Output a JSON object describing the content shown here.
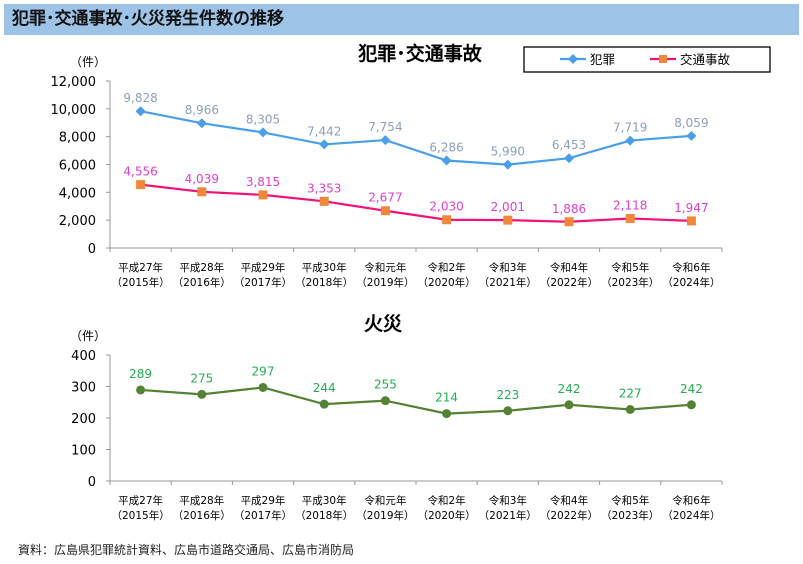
{
  "header": {
    "title": "犯罪･交通事故･火災発生件数の推移"
  },
  "source": "資料：広島県犯罪統計資料、広島市道路交通局、広島市消防局",
  "chart_data": [
    {
      "type": "line",
      "title": "犯罪･交通事故",
      "ylabel": "（件）",
      "ylim": [
        0,
        12000
      ],
      "yticks": [
        0,
        2000,
        4000,
        6000,
        8000,
        10000,
        12000
      ],
      "yticklabels": [
        "0",
        "2,000",
        "4,000",
        "6,000",
        "8,000",
        "10,000",
        "12,000"
      ],
      "categories": [
        [
          "平成27年",
          "（2015年）"
        ],
        [
          "平成28年",
          "（2016年）"
        ],
        [
          "平成29年",
          "（2017年）"
        ],
        [
          "平成30年",
          "（2018年）"
        ],
        [
          "令和元年",
          "（2019年）"
        ],
        [
          "令和2年",
          "（2020年）"
        ],
        [
          "令和3年",
          "（2021年）"
        ],
        [
          "令和4年",
          "（2022年）"
        ],
        [
          "令和5年",
          "（2023年）"
        ],
        [
          "令和6年",
          "（2024年）"
        ]
      ],
      "legend": "top-right",
      "grid": false,
      "series": [
        {
          "name": "犯罪",
          "color": "#4a9fea",
          "label_color": "#8c9fc0",
          "marker": "diamond",
          "values": [
            9828,
            8966,
            8305,
            7442,
            7754,
            6286,
            5990,
            6453,
            7719,
            8059
          ],
          "labels": [
            "9,828",
            "8,966",
            "8,305",
            "7,442",
            "7,754",
            "6,286",
            "5,990",
            "6,453",
            "7,719",
            "8,059"
          ]
        },
        {
          "name": "交通事故",
          "color": "#f0137a",
          "marker_color": "#f0883c",
          "label_color": "#e040d0",
          "marker": "square",
          "values": [
            4556,
            4039,
            3815,
            3353,
            2677,
            2030,
            2001,
            1886,
            2118,
            1947
          ],
          "labels": [
            "4,556",
            "4,039",
            "3,815",
            "3,353",
            "2,677",
            "2,030",
            "2,001",
            "1,886",
            "2,118",
            "1,947"
          ]
        }
      ]
    },
    {
      "type": "line",
      "title": "火災",
      "ylabel": "（件）",
      "ylim": [
        0,
        400
      ],
      "yticks": [
        0,
        100,
        200,
        300,
        400
      ],
      "yticklabels": [
        "0",
        "100",
        "200",
        "300",
        "400"
      ],
      "categories": [
        [
          "平成27年",
          "（2015年）"
        ],
        [
          "平成28年",
          "（2016年）"
        ],
        [
          "平成29年",
          "（2017年）"
        ],
        [
          "平成30年",
          "（2018年）"
        ],
        [
          "令和元年",
          "（2019年）"
        ],
        [
          "令和2年",
          "（2020年）"
        ],
        [
          "令和3年",
          "（2021年）"
        ],
        [
          "令和4年",
          "（2022年）"
        ],
        [
          "令和5年",
          "（2023年）"
        ],
        [
          "令和6年",
          "（2024年）"
        ]
      ],
      "grid": false,
      "series": [
        {
          "color": "#548235",
          "label_color": "#22b050",
          "marker": "circle",
          "values": [
            289,
            275,
            297,
            244,
            255,
            214,
            223,
            242,
            227,
            242
          ],
          "labels": [
            "289",
            "275",
            "297",
            "244",
            "255",
            "214",
            "223",
            "242",
            "227",
            "242"
          ]
        }
      ]
    }
  ]
}
